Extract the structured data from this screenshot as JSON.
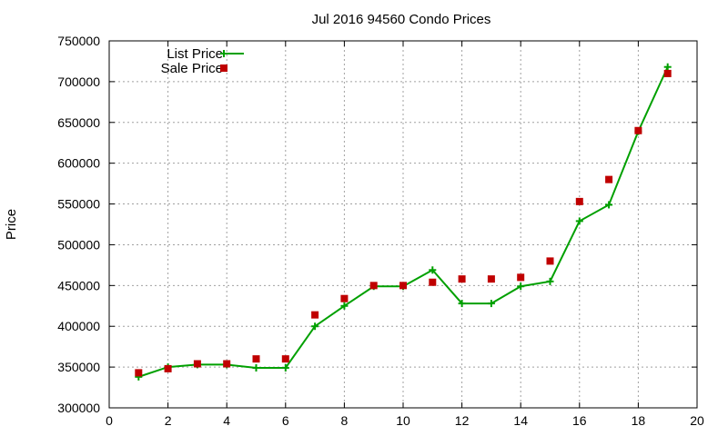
{
  "chart_data": {
    "type": "line",
    "title": "Jul 2016 94560 Condo Prices",
    "xlabel": "",
    "ylabel": "Price",
    "xlim": [
      0,
      20
    ],
    "ylim": [
      300000,
      750000
    ],
    "xticks": [
      0,
      2,
      4,
      6,
      8,
      10,
      12,
      14,
      16,
      18,
      20
    ],
    "yticks": [
      300000,
      350000,
      400000,
      450000,
      500000,
      550000,
      600000,
      650000,
      700000,
      750000
    ],
    "grid": true,
    "legend_position": "top-left",
    "series": [
      {
        "name": "List Price",
        "style": "line-with-plus-markers",
        "color": "#00a000",
        "x": [
          1,
          2,
          3,
          4,
          5,
          6,
          7,
          8,
          9,
          10,
          11,
          12,
          13,
          14,
          15,
          16,
          17,
          18,
          19
        ],
        "y": [
          338000,
          350000,
          353000,
          353000,
          349000,
          349000,
          400000,
          425000,
          449000,
          449000,
          469000,
          428000,
          428000,
          449000,
          455000,
          529000,
          549000,
          639000,
          718000
        ]
      },
      {
        "name": "Sale Price",
        "style": "square-markers",
        "color": "#c00000",
        "x": [
          1,
          2,
          3,
          4,
          5,
          6,
          7,
          8,
          9,
          10,
          11,
          12,
          13,
          14,
          15,
          16,
          17,
          18,
          19
        ],
        "y": [
          343000,
          348000,
          354000,
          354000,
          360000,
          360000,
          414000,
          434000,
          450000,
          450000,
          454000,
          458000,
          458000,
          460000,
          480000,
          553000,
          580000,
          640000,
          710000
        ]
      }
    ]
  }
}
